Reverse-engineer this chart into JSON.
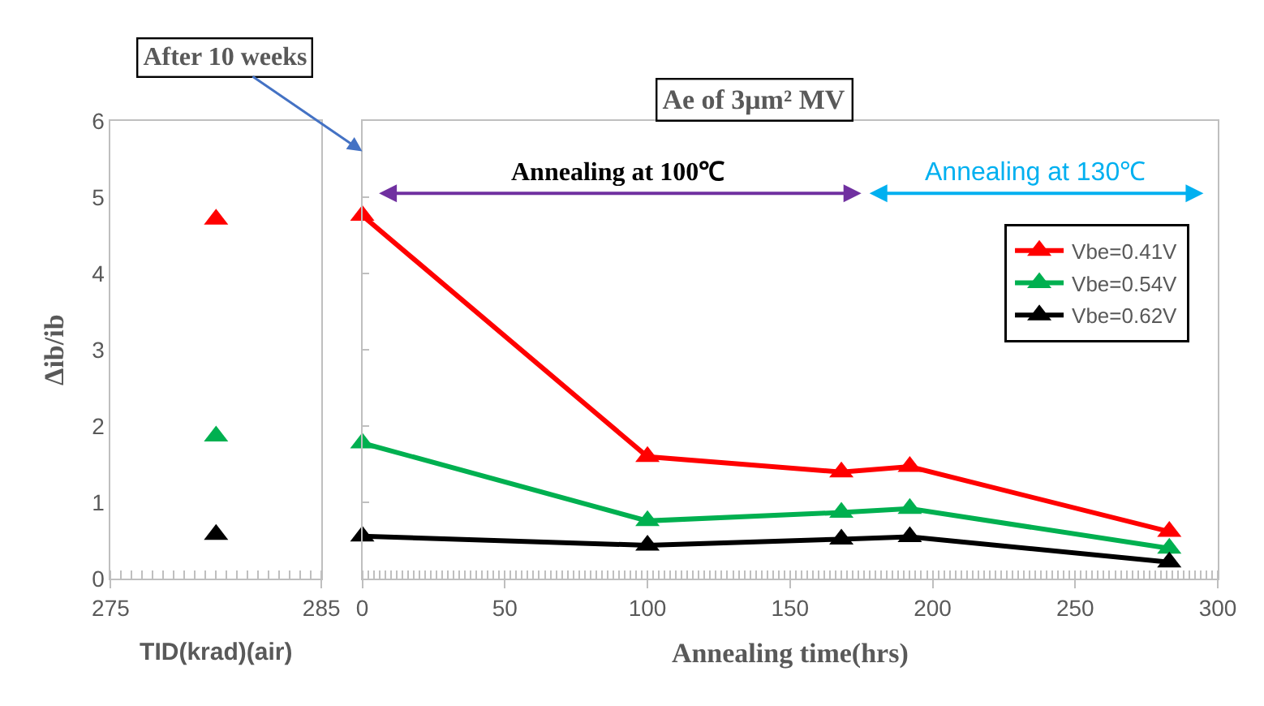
{
  "chart_data": [
    {
      "type": "line",
      "xlabel": "TID(krad)(air)",
      "ylabel": "Δib/ib",
      "x": [
        280
      ],
      "xlim": [
        275,
        285
      ],
      "xticks": [
        275,
        285
      ],
      "ylim": [
        0,
        6
      ],
      "yticks": [
        0,
        1,
        2,
        3,
        4,
        5,
        6
      ],
      "grid": false,
      "marker": "triangle",
      "legend": false,
      "series": [
        {
          "color": "#ff0000",
          "values": [
            4.71
          ]
        },
        {
          "color": "#00b050",
          "values": [
            1.87
          ]
        },
        {
          "color": "#000000",
          "values": [
            0.58
          ]
        }
      ]
    },
    {
      "type": "line",
      "title": "Ae of 3μm² MV",
      "xlabel": "Annealing time(hrs)",
      "x": [
        0,
        100,
        168,
        192,
        283
      ],
      "xlim": [
        0,
        300
      ],
      "xticks": [
        0,
        50,
        100,
        150,
        200,
        250,
        300
      ],
      "ylim": [
        0,
        6
      ],
      "yticks": [
        0,
        1,
        2,
        3,
        4,
        5,
        6
      ],
      "tick_labels": "x",
      "grid": false,
      "marker": "triangle",
      "legend": "right",
      "line_style": "solid",
      "annotations": [
        "After 10 weeks",
        "Annealing at 100℃",
        "Annealing at 130℃"
      ],
      "series": [
        {
          "name": "Vbe=0.41V",
          "color": "#ff0000",
          "values": [
            4.76,
            1.6,
            1.4,
            1.47,
            0.62
          ]
        },
        {
          "name": "Vbe=0.54V",
          "color": "#00b050",
          "values": [
            1.78,
            0.76,
            0.87,
            0.92,
            0.4
          ]
        },
        {
          "name": "Vbe=0.62V",
          "color": "#000000",
          "values": [
            0.56,
            0.44,
            0.52,
            0.55,
            0.22
          ]
        }
      ]
    }
  ]
}
